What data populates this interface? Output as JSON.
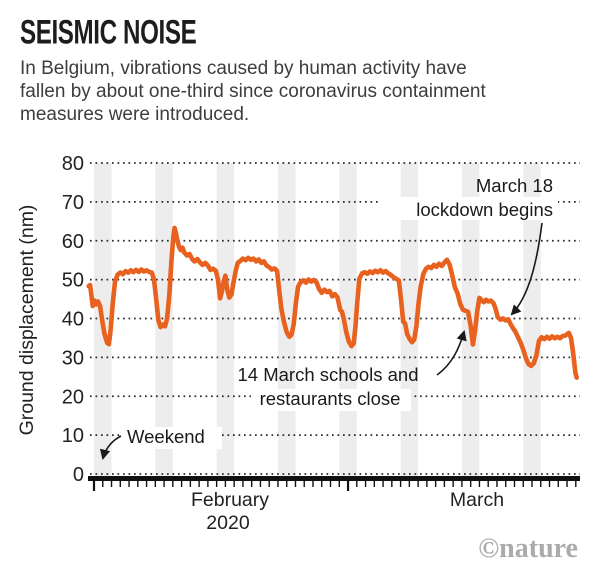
{
  "header": {
    "title": "SEISMIC NOISE",
    "subtitle_lines": [
      "In Belgium, vibrations caused by human activity have",
      "fallen by about one-third since coronavirus containment",
      "measures were introduced."
    ]
  },
  "chart_data": {
    "type": "line",
    "title": "Seismic noise in Belgium",
    "ylabel": "Ground displacement (nm)",
    "ylim": [
      0,
      80
    ],
    "yticks": [
      0,
      10,
      20,
      30,
      40,
      50,
      60,
      70,
      80
    ],
    "grid": "dotted-horizontal",
    "legend": "none",
    "x_epoch": "days since 1 February 2020",
    "xaxis": {
      "month1": "February",
      "year": "2020",
      "month2": "March"
    },
    "month_tick_days": [
      0,
      29
    ],
    "num_day_ticks": 56,
    "weekend_band_days": [
      [
        0,
        2
      ],
      [
        7,
        9
      ],
      [
        14,
        16
      ],
      [
        21,
        23
      ],
      [
        28,
        30
      ],
      [
        35,
        37
      ],
      [
        42,
        44
      ],
      [
        49,
        51
      ]
    ],
    "series": [
      {
        "name": "Ground displacement (nm)",
        "color": "#e8611f",
        "points": [
          [
            -0.6,
            48.3
          ],
          [
            -0.45,
            48.6
          ],
          [
            -0.3,
            46
          ],
          [
            -0.15,
            43.2
          ],
          [
            0.05,
            44.6
          ],
          [
            0.25,
            43.6
          ],
          [
            0.45,
            44.4
          ],
          [
            0.7,
            43.2
          ],
          [
            0.9,
            40
          ],
          [
            1.2,
            36
          ],
          [
            1.5,
            33.8
          ],
          [
            1.7,
            33.4
          ],
          [
            1.9,
            37
          ],
          [
            2.15,
            44
          ],
          [
            2.4,
            49.5
          ],
          [
            2.7,
            51.3
          ],
          [
            3,
            51.8
          ],
          [
            3.3,
            51.4
          ],
          [
            3.6,
            52.2
          ],
          [
            3.9,
            51.8
          ],
          [
            4.2,
            52.4
          ],
          [
            4.5,
            51.9
          ],
          [
            4.8,
            52.5
          ],
          [
            5.1,
            52
          ],
          [
            5.4,
            52.6
          ],
          [
            5.7,
            52.1
          ],
          [
            6,
            52.4
          ],
          [
            6.3,
            52
          ],
          [
            6.6,
            51.8
          ],
          [
            6.85,
            50
          ],
          [
            7.1,
            45
          ],
          [
            7.35,
            39.5
          ],
          [
            7.6,
            37.8
          ],
          [
            7.85,
            38.4
          ],
          [
            8.1,
            38
          ],
          [
            8.35,
            40
          ],
          [
            8.6,
            46
          ],
          [
            8.85,
            55
          ],
          [
            9.05,
            61
          ],
          [
            9.2,
            63.3
          ],
          [
            9.35,
            62
          ],
          [
            9.5,
            60.2
          ],
          [
            9.7,
            58.5
          ],
          [
            9.9,
            57.6
          ],
          [
            10.1,
            58.2
          ],
          [
            10.3,
            57
          ],
          [
            10.6,
            56.2
          ],
          [
            10.9,
            56.6
          ],
          [
            11.2,
            55.3
          ],
          [
            11.5,
            54.7
          ],
          [
            11.8,
            55.3
          ],
          [
            12.1,
            54.4
          ],
          [
            12.4,
            53.8
          ],
          [
            12.7,
            54.3
          ],
          [
            13,
            53.6
          ],
          [
            13.3,
            52.5
          ],
          [
            13.6,
            52.8
          ],
          [
            13.9,
            52.3
          ],
          [
            14.15,
            50
          ],
          [
            14.4,
            45.2
          ],
          [
            14.6,
            47
          ],
          [
            14.8,
            49.5
          ],
          [
            15,
            51
          ],
          [
            15.2,
            47.5
          ],
          [
            15.45,
            45.4
          ],
          [
            15.7,
            46.2
          ],
          [
            15.9,
            49
          ],
          [
            16.15,
            52
          ],
          [
            16.4,
            54.3
          ],
          [
            16.7,
            54.8
          ],
          [
            17,
            55.4
          ],
          [
            17.3,
            55
          ],
          [
            17.6,
            55.6
          ],
          [
            17.9,
            55.1
          ],
          [
            18.2,
            55.4
          ],
          [
            18.5,
            54.7
          ],
          [
            18.8,
            55.2
          ],
          [
            19.1,
            54.3
          ],
          [
            19.4,
            54.7
          ],
          [
            19.7,
            53.6
          ],
          [
            20,
            53.2
          ],
          [
            20.3,
            52.6
          ],
          [
            20.6,
            52.9
          ],
          [
            20.9,
            52.2
          ],
          [
            21.15,
            47
          ],
          [
            21.4,
            42.3
          ],
          [
            21.7,
            39
          ],
          [
            22,
            36.5
          ],
          [
            22.3,
            35.3
          ],
          [
            22.55,
            35.8
          ],
          [
            22.8,
            38.5
          ],
          [
            23.05,
            44
          ],
          [
            23.3,
            48.2
          ],
          [
            23.6,
            49.4
          ],
          [
            23.9,
            49.8
          ],
          [
            24.2,
            49.2
          ],
          [
            24.5,
            50
          ],
          [
            24.8,
            49.5
          ],
          [
            25.1,
            49.9
          ],
          [
            25.4,
            49.3
          ],
          [
            25.7,
            47.6
          ],
          [
            26,
            46.6
          ],
          [
            26.3,
            47.4
          ],
          [
            26.6,
            46.8
          ],
          [
            26.9,
            47.1
          ],
          [
            27.2,
            45.7
          ],
          [
            27.5,
            46.3
          ],
          [
            27.8,
            45.4
          ],
          [
            28.1,
            42.2
          ],
          [
            28.3,
            41.8
          ],
          [
            28.5,
            40
          ],
          [
            28.8,
            36.5
          ],
          [
            29.1,
            34
          ],
          [
            29.4,
            32.9
          ],
          [
            29.65,
            33.6
          ],
          [
            29.85,
            38
          ],
          [
            30.05,
            44
          ],
          [
            30.3,
            50.3
          ],
          [
            30.6,
            51.6
          ],
          [
            30.9,
            51.9
          ],
          [
            31.2,
            51.5
          ],
          [
            31.5,
            52.1
          ],
          [
            31.8,
            51.7
          ],
          [
            32.1,
            52.3
          ],
          [
            32.4,
            51.9
          ],
          [
            32.7,
            52.4
          ],
          [
            33,
            51.8
          ],
          [
            33.3,
            52.2
          ],
          [
            33.6,
            51.6
          ],
          [
            33.9,
            51.2
          ],
          [
            34.2,
            50.6
          ],
          [
            34.5,
            50.2
          ],
          [
            34.8,
            49.8
          ],
          [
            35.05,
            45
          ],
          [
            35.3,
            39.2
          ],
          [
            35.5,
            38.8
          ],
          [
            35.75,
            36
          ],
          [
            36,
            34.8
          ],
          [
            36.3,
            33.9
          ],
          [
            36.55,
            34.6
          ],
          [
            36.8,
            38
          ],
          [
            37.05,
            44
          ],
          [
            37.3,
            48.3
          ],
          [
            37.6,
            51.5
          ],
          [
            37.9,
            52.8
          ],
          [
            38.2,
            53.3
          ],
          [
            38.5,
            53
          ],
          [
            38.8,
            53.8
          ],
          [
            39.1,
            53.3
          ],
          [
            39.4,
            54.1
          ],
          [
            39.7,
            53.5
          ],
          [
            40,
            54.4
          ],
          [
            40.3,
            55.1
          ],
          [
            40.6,
            53.8
          ],
          [
            40.9,
            51
          ],
          [
            41.2,
            48
          ],
          [
            41.5,
            46.5
          ],
          [
            41.8,
            43.8
          ],
          [
            42.1,
            42.3
          ],
          [
            42.4,
            42
          ],
          [
            42.7,
            41.7
          ],
          [
            43,
            38
          ],
          [
            43.25,
            33.3
          ],
          [
            43.5,
            37
          ],
          [
            43.75,
            42
          ],
          [
            44,
            45.3
          ],
          [
            44.25,
            44.7
          ],
          [
            44.5,
            44.2
          ],
          [
            44.75,
            44.8
          ],
          [
            45,
            44.4
          ],
          [
            45.3,
            44.6
          ],
          [
            45.6,
            43.9
          ],
          [
            45.85,
            42.5
          ],
          [
            46.1,
            40.3
          ],
          [
            46.4,
            39.7
          ],
          [
            46.7,
            40
          ],
          [
            47,
            39.5
          ],
          [
            47.3,
            39.8
          ],
          [
            47.55,
            38.6
          ],
          [
            47.8,
            37.6
          ],
          [
            48.1,
            36.6
          ],
          [
            48.4,
            35.2
          ],
          [
            48.7,
            33.8
          ],
          [
            49,
            32
          ],
          [
            49.3,
            29.8
          ],
          [
            49.6,
            28.3
          ],
          [
            49.9,
            27.8
          ],
          [
            50.2,
            28.5
          ],
          [
            50.5,
            30.5
          ],
          [
            50.8,
            34.3
          ],
          [
            51.1,
            35.2
          ],
          [
            51.4,
            34.7
          ],
          [
            51.7,
            35.3
          ],
          [
            52,
            34.8
          ],
          [
            52.3,
            35.4
          ],
          [
            52.6,
            34.9
          ],
          [
            52.9,
            35.3
          ],
          [
            53.2,
            34.9
          ],
          [
            53.5,
            35.5
          ],
          [
            53.8,
            35.6
          ],
          [
            54.2,
            36.3
          ],
          [
            54.45,
            35
          ],
          [
            54.7,
            31
          ],
          [
            54.95,
            26
          ],
          [
            55.1,
            24.8
          ]
        ]
      }
    ],
    "annotations": {
      "weekend": {
        "text": "Weekend"
      },
      "schools": {
        "line1": "14 March schools and",
        "line2": "restaurants close"
      },
      "lockdown": {
        "line1": "March 18",
        "line2": "lockdown begins"
      }
    }
  },
  "credit": {
    "text": "©nature"
  },
  "colors": {
    "line": "#e8611f",
    "weekend_band": "#ededed",
    "grid": "#2b2b2b",
    "axis": "#111111",
    "annotation_text": "#1a1a1a",
    "credit": "#ababab"
  }
}
